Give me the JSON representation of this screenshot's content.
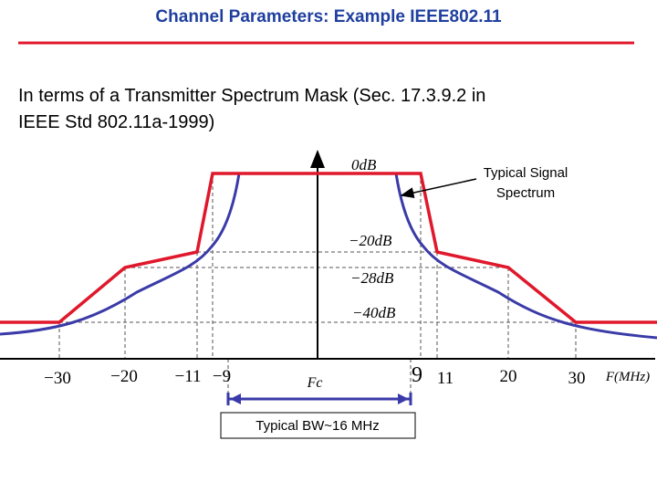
{
  "title": "Channel Parameters: Example IEEE802.11",
  "body": [
    "In terms of a Transmitter Spectrum Mask (Sec. 17.3.9.2 in",
    "IEEE Std 802.11a-1999)"
  ],
  "diagram": {
    "level_labels": [
      "0dB",
      "−20dB",
      "−28dB",
      "−40dB"
    ],
    "x_labels": [
      "−30",
      "−20",
      "−11",
      "−9",
      "Fc",
      "9",
      "11",
      "20",
      "30"
    ],
    "x_axis_label": "F(MHz)",
    "annotation": [
      "Typical Signal",
      "Spectrum"
    ],
    "bandwidth_label": "Typical BW~16 MHz"
  }
}
